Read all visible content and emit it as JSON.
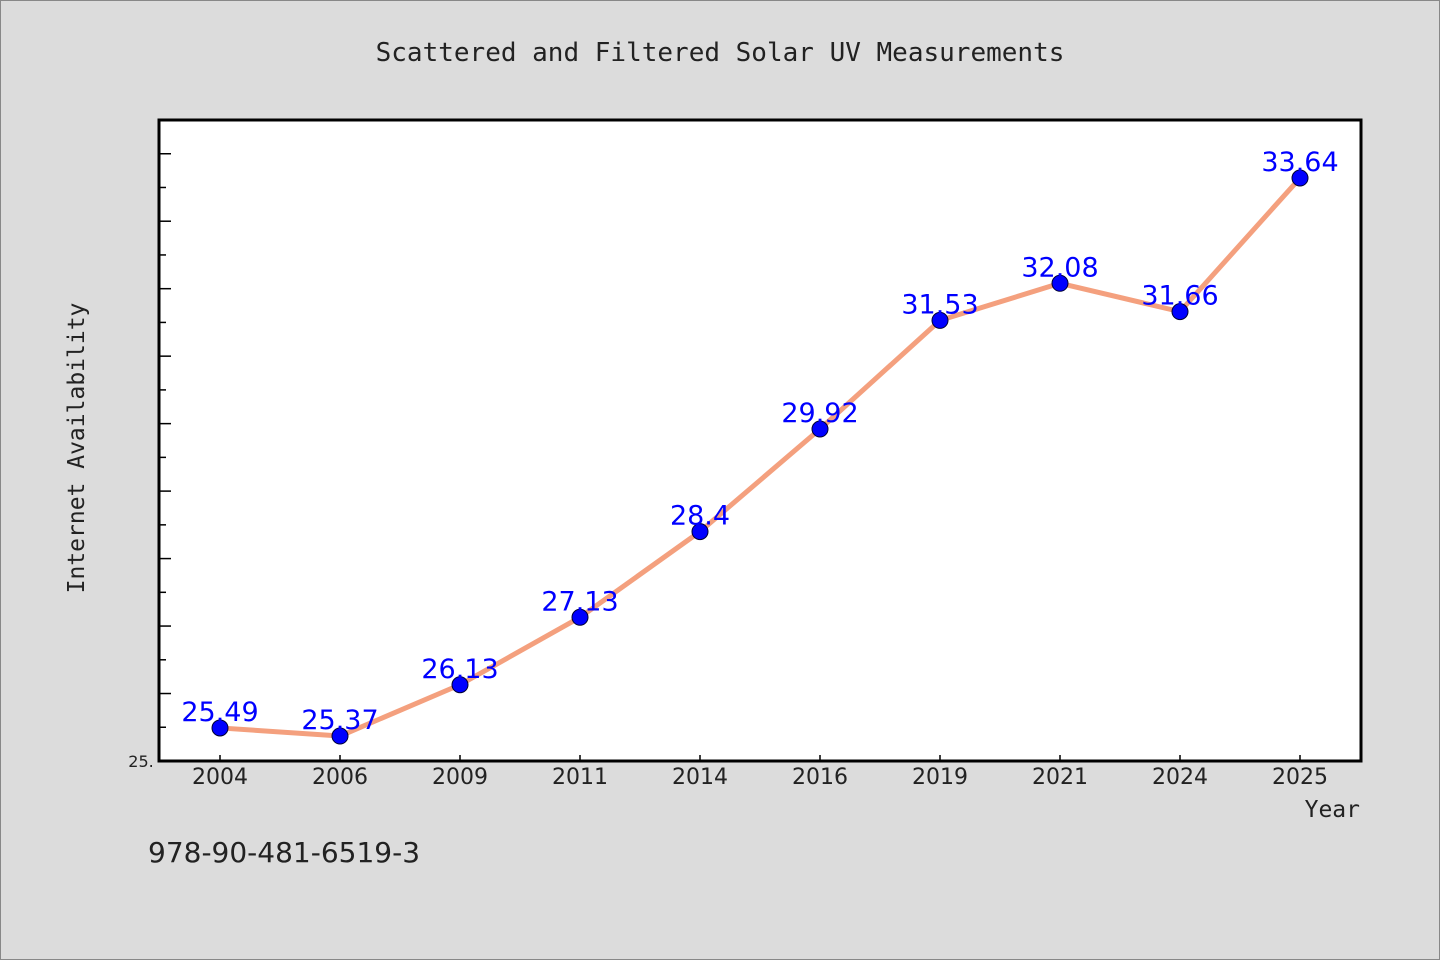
{
  "chart_data": {
    "type": "line",
    "title": "Scattered and Filtered Solar UV Measurements",
    "xlabel": "Year",
    "ylabel": "Internet Availability",
    "categories": [
      "2004",
      "2006",
      "2009",
      "2011",
      "2014",
      "2016",
      "2019",
      "2021",
      "2024",
      "2025"
    ],
    "values": [
      25.49,
      25.37,
      26.13,
      27.13,
      28.4,
      29.92,
      31.53,
      32.08,
      31.66,
      33.64
    ],
    "labels": [
      "25.49",
      "25.37",
      "26.13",
      "27.13",
      "28.4",
      "29.92",
      "31.53",
      "32.08",
      "31.66",
      "33.64"
    ],
    "ylim": [
      25.0,
      34.5
    ],
    "y_tick_label": "25.",
    "grid": false,
    "legend": "none",
    "colors": {
      "background": "#dcdcdc",
      "plot_background": "#ffffff",
      "line": "#f4a07e",
      "marker": "#0000ff",
      "data_label": "#0000ff",
      "text": "#222222"
    }
  },
  "footer": {
    "isbn": "978-90-481-6519-3"
  }
}
